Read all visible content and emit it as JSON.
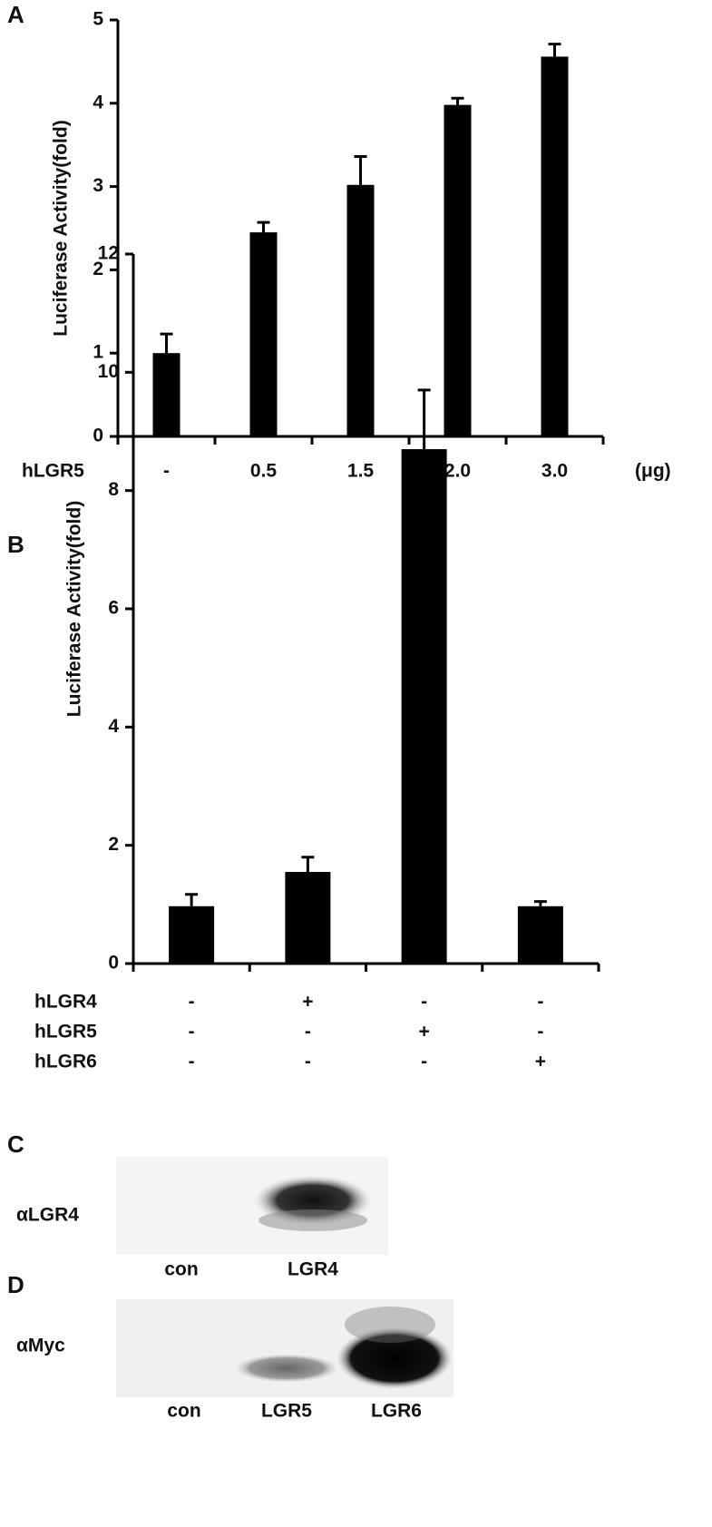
{
  "chart_data": [
    {
      "type": "bar",
      "panel": "A",
      "y_label": "Luciferase Activity(fold)",
      "row_label": "hLGR5",
      "unit_label": "(μg)",
      "categories": [
        "-",
        "0.5",
        "1.5",
        "2.0",
        "3.0"
      ],
      "values": [
        1.0,
        2.45,
        3.02,
        3.98,
        4.56
      ],
      "errors": [
        0.23,
        0.12,
        0.34,
        0.08,
        0.15
      ],
      "color": "#000000",
      "ylim": [
        0,
        5
      ],
      "yticks": [
        0,
        1,
        2,
        3,
        4,
        5
      ]
    },
    {
      "type": "bar",
      "panel": "B",
      "y_label": "Luciferase Activity(fold)",
      "conditions": [
        {
          "name": "hLGR4",
          "values": [
            "-",
            "+",
            "-",
            "-"
          ]
        },
        {
          "name": "hLGR5",
          "values": [
            "-",
            "-",
            "+",
            "-"
          ]
        },
        {
          "name": "hLGR6",
          "values": [
            "-",
            "-",
            "-",
            "+"
          ]
        }
      ],
      "values": [
        0.97,
        1.55,
        8.7,
        0.97
      ],
      "errors": [
        0.2,
        0.25,
        1.0,
        0.08
      ],
      "color": "#000000",
      "ylim": [
        0,
        12
      ],
      "yticks": [
        0,
        2,
        4,
        6,
        8,
        10,
        12
      ]
    }
  ],
  "blots": [
    {
      "panel": "C",
      "antibody": "αLGR4",
      "lanes": [
        "con",
        "LGR4"
      ]
    },
    {
      "panel": "D",
      "antibody": "αMyc",
      "lanes": [
        "con",
        "LGR5",
        "LGR6"
      ]
    }
  ]
}
